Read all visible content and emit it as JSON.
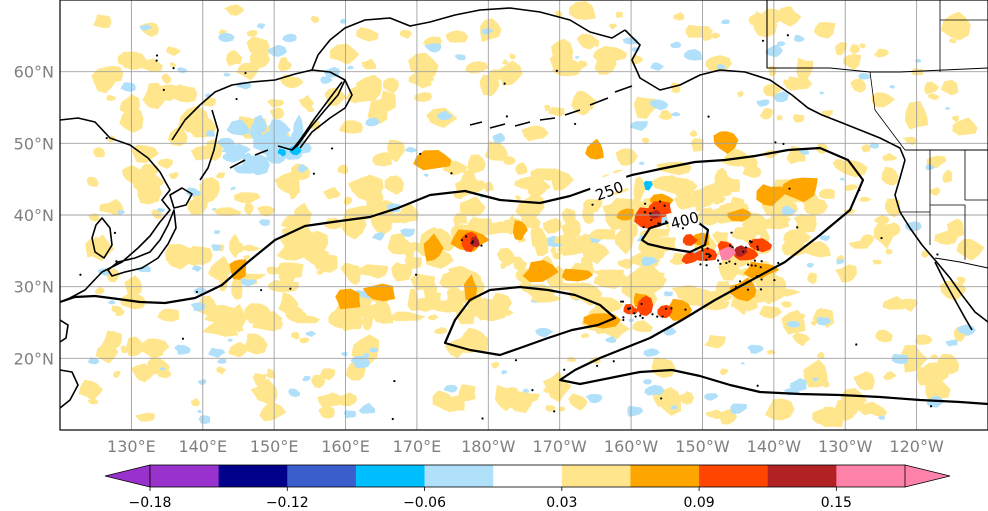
{
  "map": {
    "lon_ticks": [
      {
        "lon": 130,
        "label": "130°E"
      },
      {
        "lon": 140,
        "label": "140°E"
      },
      {
        "lon": 150,
        "label": "150°E"
      },
      {
        "lon": 160,
        "label": "160°E"
      },
      {
        "lon": 170,
        "label": "170°E"
      },
      {
        "lon": 180,
        "label": "180°W"
      },
      {
        "lon": 190,
        "label": "170°W"
      },
      {
        "lon": 200,
        "label": "160°W"
      },
      {
        "lon": 210,
        "label": "150°W"
      },
      {
        "lon": 220,
        "label": "140°W"
      },
      {
        "lon": 230,
        "label": "130°W"
      },
      {
        "lon": 240,
        "label": "120°W"
      }
    ],
    "lat_ticks": [
      {
        "lat": 20,
        "label": "20°N"
      },
      {
        "lat": 30,
        "label": "30°N"
      },
      {
        "lat": 40,
        "label": "40°N"
      },
      {
        "lat": 50,
        "label": "50°N"
      },
      {
        "lat": 60,
        "label": "60°N"
      }
    ],
    "extent": {
      "lon_min": 120,
      "lon_max": 250,
      "lat_min": 10,
      "lat_max": 70
    },
    "contour_labels": [
      "250",
      "400"
    ],
    "land_color": "#ffffff",
    "coast_color": "#000000"
  },
  "colorbar": {
    "bounds": [
      -0.18,
      -0.15,
      -0.12,
      -0.09,
      -0.06,
      -0.03,
      0.03,
      0.06,
      0.09,
      0.12,
      0.15,
      0.18
    ],
    "colors": [
      "#9932cc",
      "#00008b",
      "#3a5fcd",
      "#00bfff",
      "#b0e0fa",
      "#ffffff",
      "#ffe68c",
      "#ffa500",
      "#ff4500",
      "#b22222",
      "#ff82ab"
    ],
    "under_color": "#9932cc",
    "over_color": "#ff82ab",
    "tick_labels": [
      "−0.18",
      "−0.12",
      "−0.06",
      "0.03",
      "0.09",
      "0.15"
    ]
  }
}
